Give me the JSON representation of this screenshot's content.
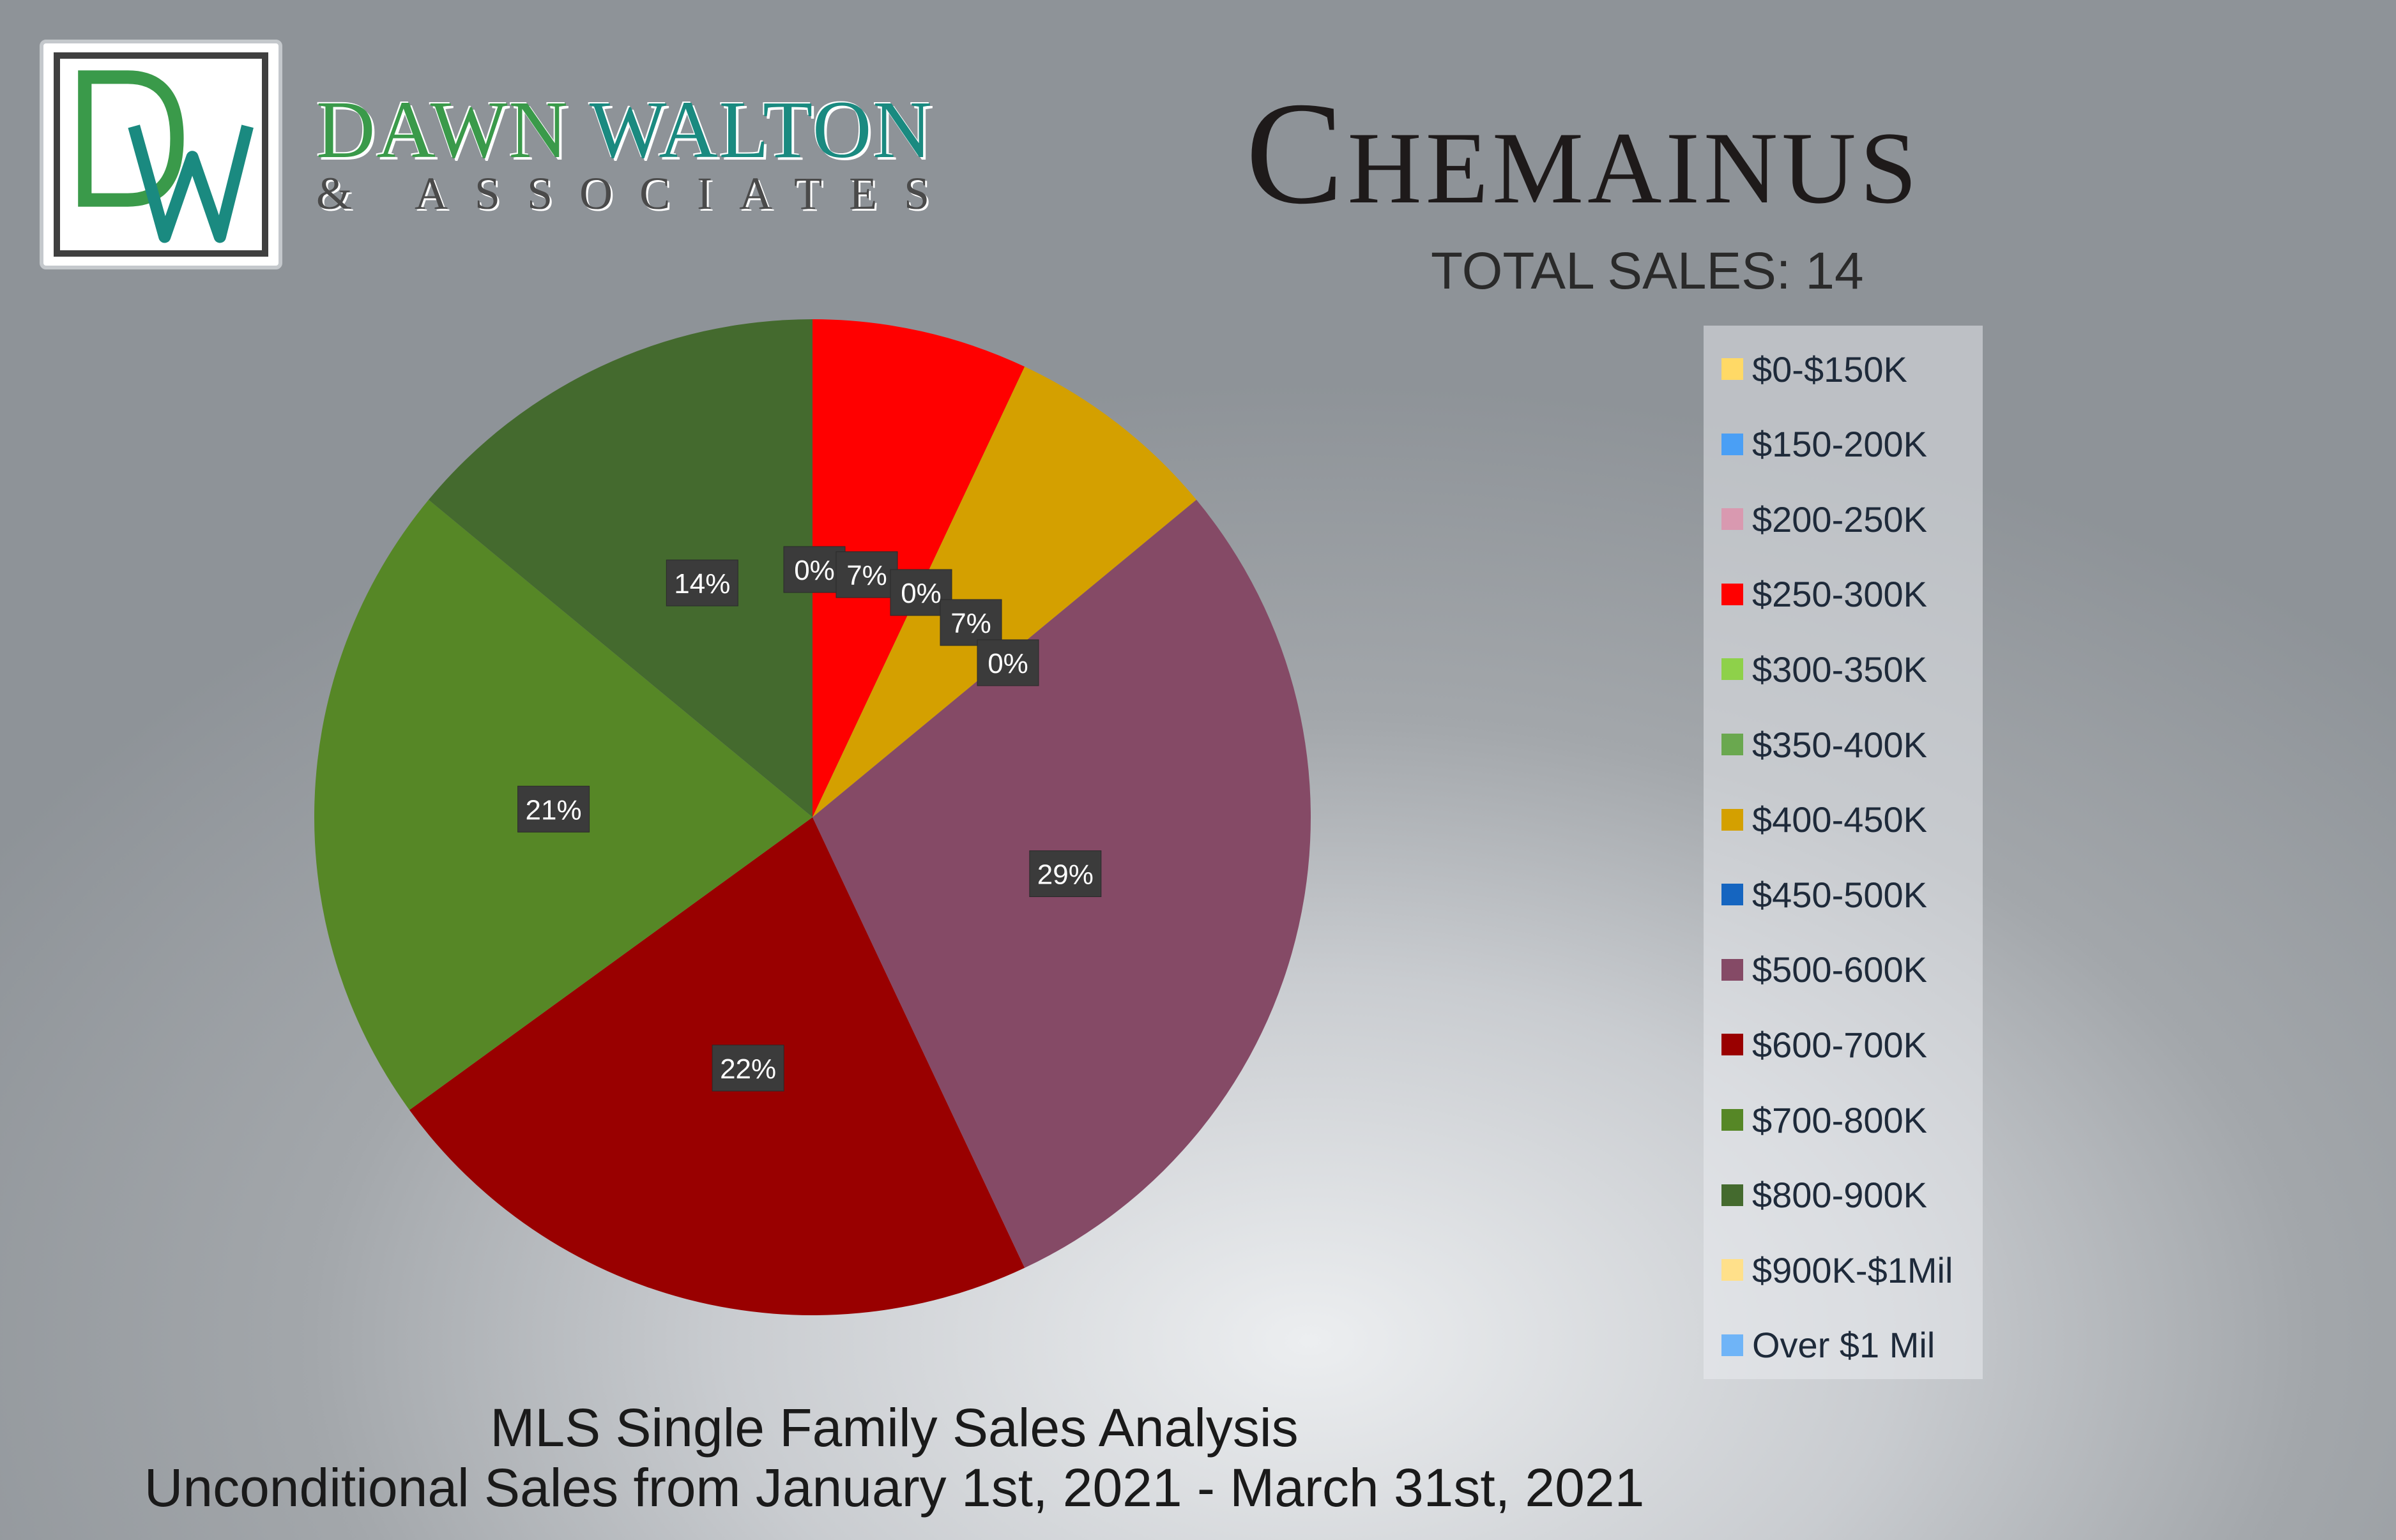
{
  "brand": {
    "name_part1": "DAWN ",
    "name_part2": "WALTON",
    "subtitle": "& ASSOCIATES",
    "logo_letters": "DW"
  },
  "header": {
    "title": "Chemainus",
    "total_sales": "TOTAL SALES: 14"
  },
  "footer": {
    "line1": "MLS Single Family Sales Analysis",
    "line2": "Unconditional Sales from January 1st, 2021 - March 31st, 2021"
  },
  "chart_data": {
    "type": "pie",
    "title": "Chemainus",
    "categories": [
      "$0-$150K",
      "$150-200K",
      "$200-250K",
      "$250-300K",
      "$300-350K",
      "$350-400K",
      "$400-450K",
      "$450-500K",
      "$500-600K",
      "$600-700K",
      "$700-800K",
      "$800-900K",
      "$900K-$1Mil",
      "Over $1 Mil"
    ],
    "values": [
      0,
      0,
      0,
      7,
      0,
      0,
      7,
      0,
      29,
      22,
      21,
      14,
      0,
      0
    ],
    "data_labels": [
      "",
      "",
      "0%",
      "7%",
      "0%",
      "",
      "7%",
      "0%",
      "29%",
      "22%",
      "21%",
      "14%",
      "",
      ""
    ],
    "colors": [
      "#ffd966",
      "#4a9ff5",
      "#d999b0",
      "#ff0000",
      "#8ed14a",
      "#6aa84f",
      "#d4a000",
      "#1565c0",
      "#854a66",
      "#990000",
      "#568726",
      "#446a2e",
      "#ffe08a",
      "#6fb4f7"
    ],
    "legend_position": "right"
  }
}
